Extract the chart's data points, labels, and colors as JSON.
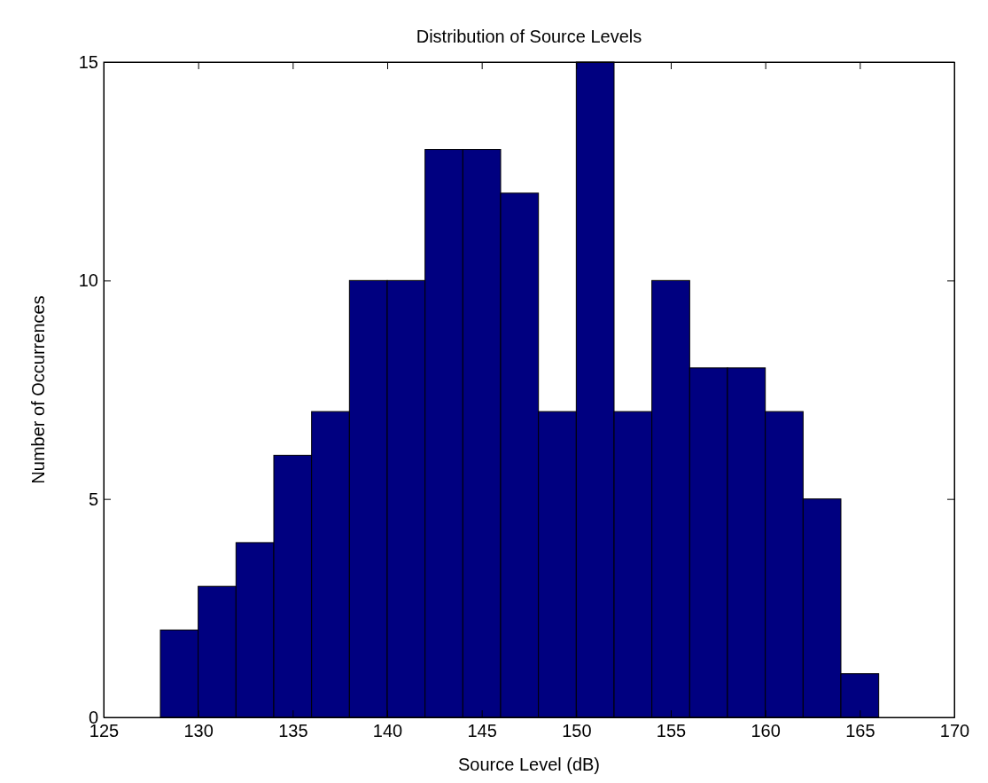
{
  "chart_data": {
    "type": "histogram",
    "title": "Distribution of Source Levels",
    "xlabel": "Source Level (dB)",
    "ylabel": "Number of Occurrences",
    "bins": [
      128,
      130,
      132,
      134,
      136,
      138,
      140,
      142,
      144,
      146,
      148,
      150,
      152,
      154,
      156,
      158,
      160,
      162,
      164,
      166
    ],
    "values": [
      2,
      3,
      4,
      6,
      7,
      10,
      10,
      13,
      13,
      12,
      7,
      15,
      7,
      10,
      8,
      8,
      7,
      5,
      1
    ],
    "color": "#000080",
    "xlim": [
      125,
      170
    ],
    "xticks": [
      125,
      130,
      135,
      140,
      145,
      150,
      155,
      160,
      165,
      170
    ],
    "ylim": [
      0,
      15
    ],
    "yticks": [
      0,
      5,
      10,
      15
    ],
    "grid": false
  }
}
